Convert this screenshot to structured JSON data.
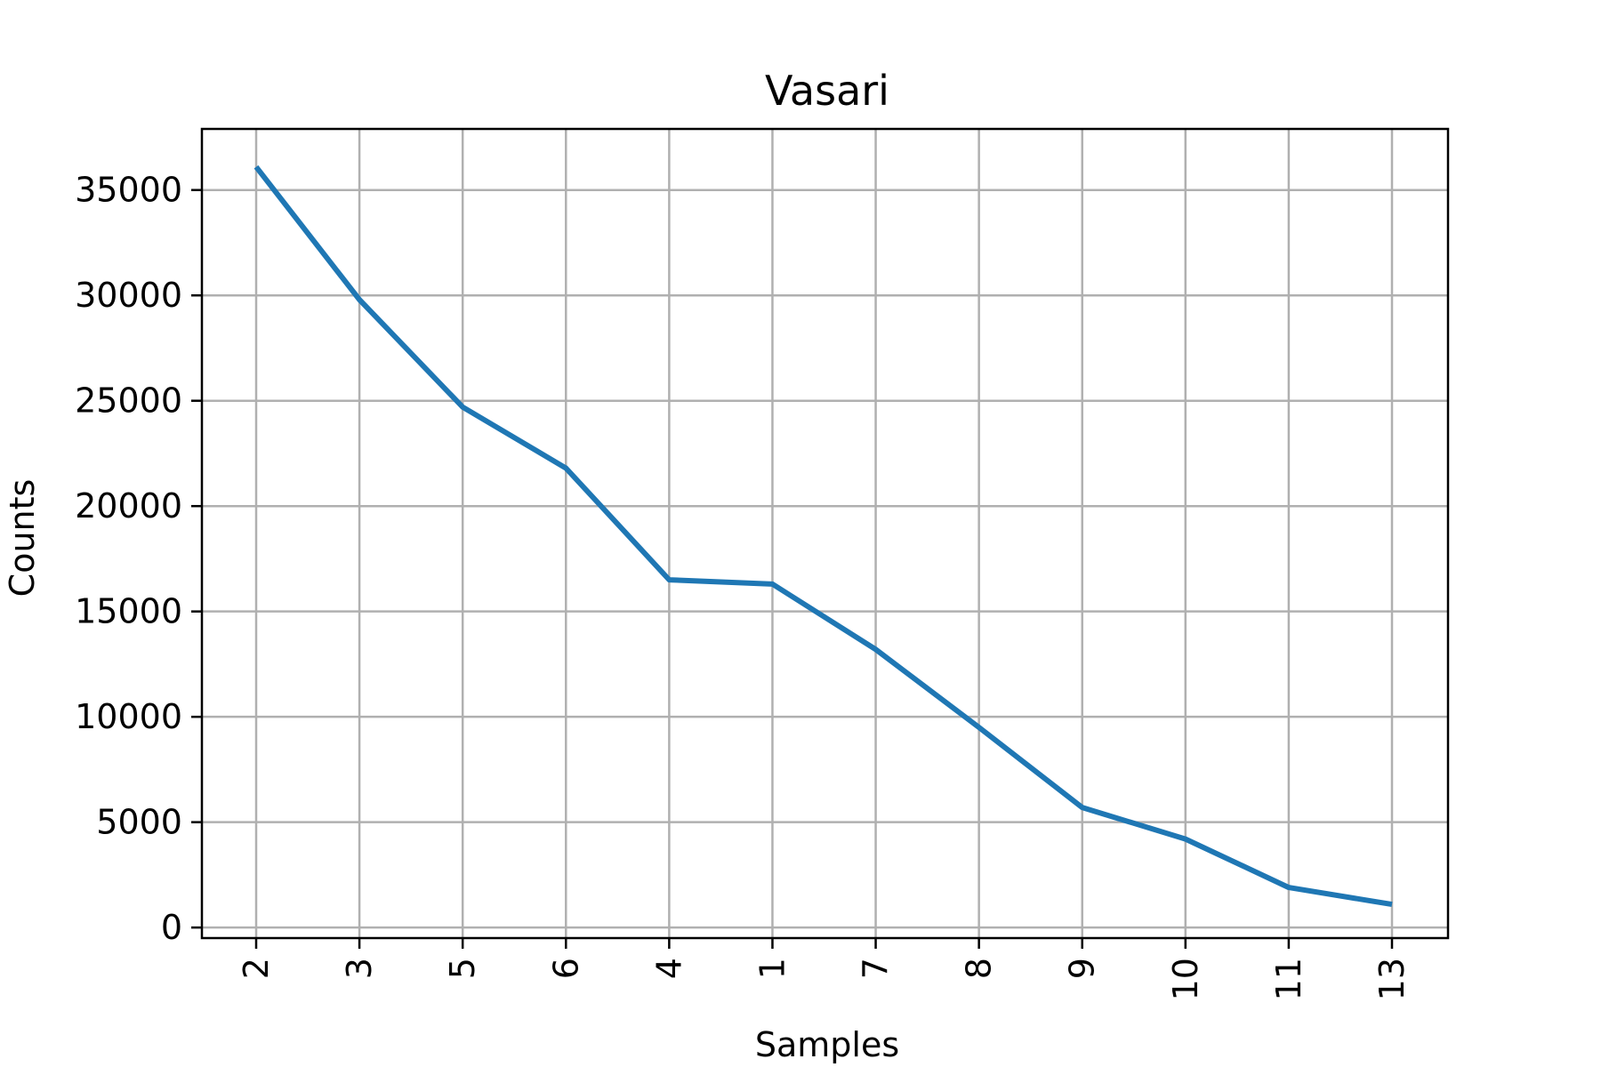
{
  "chart_data": {
    "type": "line",
    "title": "Vasari",
    "xlabel": "Samples",
    "ylabel": "Counts",
    "categories": [
      "2",
      "3",
      "5",
      "6",
      "4",
      "1",
      "7",
      "8",
      "9",
      "10",
      "11",
      "13"
    ],
    "series": [
      {
        "values": [
          36100,
          29800,
          24700,
          21800,
          16500,
          16300,
          13200,
          9500,
          5700,
          4200,
          1900,
          1100
        ],
        "color": "#1f77b4"
      }
    ],
    "ylim": [
      -500,
      37900
    ],
    "yticks": [
      0,
      5000,
      10000,
      15000,
      20000,
      25000,
      30000,
      35000
    ],
    "grid": true,
    "x_tick_rotation": "vertical"
  }
}
